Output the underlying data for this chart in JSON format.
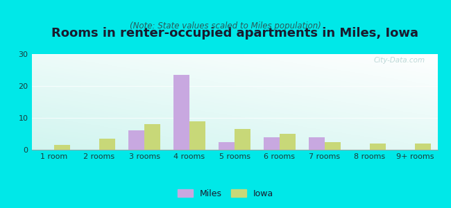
{
  "categories": [
    "1 room",
    "2 rooms",
    "3 rooms",
    "4 rooms",
    "5 rooms",
    "6 rooms",
    "7 rooms",
    "8 rooms",
    "9+ rooms"
  ],
  "miles_values": [
    0,
    0,
    6.0,
    23.5,
    2.5,
    4.0,
    4.0,
    0,
    0
  ],
  "iowa_values": [
    1.5,
    3.5,
    8.0,
    9.0,
    6.5,
    5.0,
    2.5,
    2.0,
    2.0
  ],
  "miles_color": "#c8a8e0",
  "iowa_color": "#c8d878",
  "background_outer": "#00e8e8",
  "title": "Rooms in renter-occupied apartments in Miles, Iowa",
  "subtitle": "(Note: State values scaled to Miles population)",
  "legend_miles": "Miles",
  "legend_iowa": "Iowa",
  "ylim": [
    0,
    30
  ],
  "yticks": [
    0,
    10,
    20,
    30
  ],
  "bar_width": 0.35,
  "title_fontsize": 13,
  "subtitle_fontsize": 8.5,
  "tick_fontsize": 8,
  "legend_fontsize": 9,
  "watermark": "City-Data.com",
  "title_color": "#1a1a2e",
  "subtitle_color": "#2a5a5a",
  "tick_color": "#1a3a3a"
}
